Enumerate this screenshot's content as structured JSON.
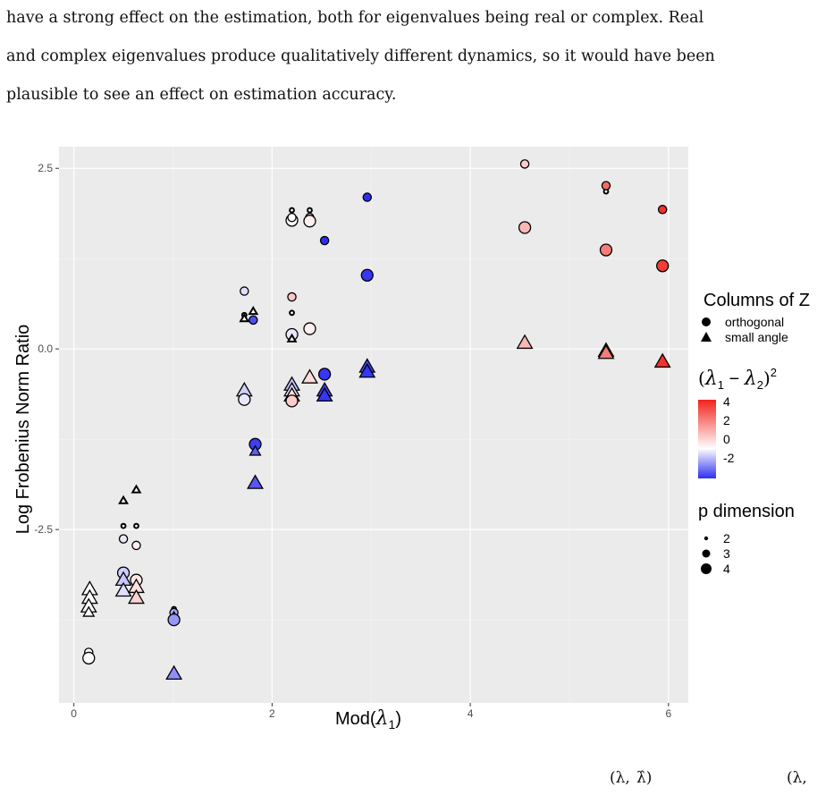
{
  "paper": {
    "lines": [
      "have a strong effect on the estimation, both for eigenvalues being real or complex. Real",
      "and complex eigenvalues produce qualitatively different dynamics, so it would have been",
      "plausible to see an effect on estimation accuracy."
    ],
    "footer_fragments": [
      "(λ,",
      "λ̂)",
      "(λ,"
    ]
  },
  "chart_data": {
    "type": "scatter",
    "xlabel": "Mod(λ1)",
    "ylabel": "Log Frobenius Norm Ratio",
    "xlim": [
      -0.15,
      6.2
    ],
    "ylim": [
      -4.9,
      2.8
    ],
    "x_ticks": [
      0,
      2,
      4,
      6
    ],
    "y_ticks": [
      2.5,
      0.0,
      -2.5
    ],
    "y_tick_labels": [
      "2.5",
      "0.0",
      "-2.5"
    ],
    "grid": true,
    "background": "#ebebeb",
    "legend": {
      "placement": "right",
      "shape": {
        "title": "Columns of Z",
        "entries": [
          {
            "label": "orthogonal",
            "shape": "circle"
          },
          {
            "label": "small angle",
            "shape": "triangle"
          }
        ]
      },
      "color": {
        "title": "(λ1 − λ2)²",
        "ticks": [
          "4",
          "2",
          "0",
          "-2"
        ],
        "low_color": "#2e2ef2",
        "mid_color": "#ffffff",
        "high_color": "#f1241c"
      },
      "size": {
        "title": "p dimension",
        "entries": [
          "2",
          "3",
          "4"
        ]
      }
    },
    "color_scale": {
      "min": -2.6,
      "mid": 0,
      "max": 4.3,
      "low": "#2e2ef2",
      "mid_color": "#ffffff",
      "high": "#f1241c"
    },
    "points": [
      {
        "x": 0.15,
        "y": -4.2,
        "shape": "circle",
        "p": 3,
        "c": 0
      },
      {
        "x": 0.15,
        "y": -4.28,
        "shape": "circle",
        "p": 4,
        "c": 0
      },
      {
        "x": 0.16,
        "y": -3.33,
        "shape": "triangle",
        "p": 4,
        "c": 0
      },
      {
        "x": 0.16,
        "y": -3.45,
        "shape": "triangle",
        "p": 4,
        "c": 0
      },
      {
        "x": 0.15,
        "y": -3.57,
        "shape": "triangle",
        "p": 4,
        "c": 0
      },
      {
        "x": 0.15,
        "y": -3.65,
        "shape": "triangle",
        "p": 3,
        "c": 0
      },
      {
        "x": 0.5,
        "y": -2.45,
        "shape": "circle",
        "p": 2,
        "c": 0
      },
      {
        "x": 0.5,
        "y": -2.63,
        "shape": "circle",
        "p": 3,
        "c": -0.3
      },
      {
        "x": 0.5,
        "y": -3.1,
        "shape": "circle",
        "p": 4,
        "c": -0.6
      },
      {
        "x": 0.5,
        "y": -3.2,
        "shape": "triangle",
        "p": 4,
        "c": -0.7
      },
      {
        "x": 0.5,
        "y": -3.35,
        "shape": "triangle",
        "p": 4,
        "c": -0.4
      },
      {
        "x": 0.5,
        "y": -2.1,
        "shape": "triangle",
        "p": 2,
        "c": 0
      },
      {
        "x": 0.63,
        "y": -1.95,
        "shape": "triangle",
        "p": 2,
        "c": 0
      },
      {
        "x": 0.63,
        "y": -2.45,
        "shape": "circle",
        "p": 2,
        "c": 0
      },
      {
        "x": 0.63,
        "y": -2.72,
        "shape": "circle",
        "p": 3,
        "c": 0.3
      },
      {
        "x": 0.63,
        "y": -3.2,
        "shape": "circle",
        "p": 4,
        "c": 0.45
      },
      {
        "x": 0.63,
        "y": -3.3,
        "shape": "triangle",
        "p": 4,
        "c": 0.6
      },
      {
        "x": 0.63,
        "y": -3.45,
        "shape": "triangle",
        "p": 4,
        "c": 0.9
      },
      {
        "x": 1.01,
        "y": -3.6,
        "shape": "circle",
        "p": 2,
        "c": 0
      },
      {
        "x": 1.01,
        "y": -3.65,
        "shape": "circle",
        "p": 3,
        "c": -1.1
      },
      {
        "x": 1.01,
        "y": -3.7,
        "shape": "triangle",
        "p": 2,
        "c": 0
      },
      {
        "x": 1.01,
        "y": -3.75,
        "shape": "circle",
        "p": 4,
        "c": -1.3
      },
      {
        "x": 1.01,
        "y": -4.5,
        "shape": "triangle",
        "p": 4,
        "c": -1.4
      },
      {
        "x": 1.72,
        "y": 0.8,
        "shape": "circle",
        "p": 3,
        "c": -0.4
      },
      {
        "x": 1.72,
        "y": 0.47,
        "shape": "circle",
        "p": 2,
        "c": 0
      },
      {
        "x": 1.72,
        "y": 0.42,
        "shape": "triangle",
        "p": 2,
        "c": 0
      },
      {
        "x": 1.72,
        "y": -0.58,
        "shape": "triangle",
        "p": 4,
        "c": -0.6
      },
      {
        "x": 1.72,
        "y": -0.7,
        "shape": "circle",
        "p": 4,
        "c": -0.3
      },
      {
        "x": 1.81,
        "y": 0.52,
        "shape": "triangle",
        "p": 2,
        "c": 0
      },
      {
        "x": 1.81,
        "y": 0.4,
        "shape": "circle",
        "p": 3,
        "c": -2.2
      },
      {
        "x": 1.83,
        "y": -1.32,
        "shape": "circle",
        "p": 4,
        "c": -2.4
      },
      {
        "x": 1.83,
        "y": -1.42,
        "shape": "triangle",
        "p": 3,
        "c": -2.0
      },
      {
        "x": 1.83,
        "y": -1.86,
        "shape": "triangle",
        "p": 4,
        "c": -2.1
      },
      {
        "x": 2.2,
        "y": 1.92,
        "shape": "circle",
        "p": 2,
        "c": 0
      },
      {
        "x": 2.2,
        "y": 1.78,
        "shape": "circle",
        "p": 4,
        "c": 0.1
      },
      {
        "x": 2.2,
        "y": 1.82,
        "shape": "circle",
        "p": 3,
        "c": 0
      },
      {
        "x": 2.2,
        "y": 0.72,
        "shape": "circle",
        "p": 3,
        "c": 1.1
      },
      {
        "x": 2.2,
        "y": 0.5,
        "shape": "circle",
        "p": 2,
        "c": 0
      },
      {
        "x": 2.2,
        "y": 0.2,
        "shape": "circle",
        "p": 4,
        "c": -0.3
      },
      {
        "x": 2.2,
        "y": 0.14,
        "shape": "triangle",
        "p": 2,
        "c": 0
      },
      {
        "x": 2.2,
        "y": -0.5,
        "shape": "triangle",
        "p": 4,
        "c": -0.8
      },
      {
        "x": 2.2,
        "y": -0.58,
        "shape": "triangle",
        "p": 4,
        "c": -0.3
      },
      {
        "x": 2.2,
        "y": -0.65,
        "shape": "triangle",
        "p": 4,
        "c": 0.6
      },
      {
        "x": 2.2,
        "y": -0.72,
        "shape": "circle",
        "p": 4,
        "c": 1.0
      },
      {
        "x": 2.38,
        "y": 1.92,
        "shape": "circle",
        "p": 2,
        "c": 0
      },
      {
        "x": 2.38,
        "y": 1.82,
        "shape": "circle",
        "p": 3,
        "c": 0
      },
      {
        "x": 2.38,
        "y": 1.77,
        "shape": "circle",
        "p": 4,
        "c": 0.3
      },
      {
        "x": 2.38,
        "y": 0.28,
        "shape": "circle",
        "p": 4,
        "c": 0.3
      },
      {
        "x": 2.38,
        "y": -0.4,
        "shape": "triangle",
        "p": 4,
        "c": 0.7
      },
      {
        "x": 2.53,
        "y": 1.5,
        "shape": "circle",
        "p": 3,
        "c": -2.6
      },
      {
        "x": 2.53,
        "y": -0.35,
        "shape": "circle",
        "p": 4,
        "c": -2.5
      },
      {
        "x": 2.53,
        "y": -0.58,
        "shape": "triangle",
        "p": 4,
        "c": -2.3
      },
      {
        "x": 2.53,
        "y": -0.65,
        "shape": "triangle",
        "p": 4,
        "c": -2.5
      },
      {
        "x": 2.96,
        "y": 2.1,
        "shape": "circle",
        "p": 3,
        "c": -2.6
      },
      {
        "x": 2.96,
        "y": 1.02,
        "shape": "circle",
        "p": 4,
        "c": -2.5
      },
      {
        "x": 2.96,
        "y": -0.25,
        "shape": "triangle",
        "p": 4,
        "c": -2.3
      },
      {
        "x": 2.96,
        "y": -0.32,
        "shape": "triangle",
        "p": 4,
        "c": -2.5
      },
      {
        "x": 4.55,
        "y": 2.55,
        "shape": "circle",
        "p": 2,
        "c": 0
      },
      {
        "x": 4.55,
        "y": 2.56,
        "shape": "circle",
        "p": 3,
        "c": 1.0
      },
      {
        "x": 4.55,
        "y": 1.68,
        "shape": "circle",
        "p": 4,
        "c": 1.4
      },
      {
        "x": 4.55,
        "y": 0.08,
        "shape": "triangle",
        "p": 4,
        "c": 1.4
      },
      {
        "x": 5.37,
        "y": 2.18,
        "shape": "circle",
        "p": 2,
        "c": 0
      },
      {
        "x": 5.37,
        "y": 2.26,
        "shape": "circle",
        "p": 3,
        "c": 2.9
      },
      {
        "x": 5.37,
        "y": 1.37,
        "shape": "circle",
        "p": 4,
        "c": 2.6
      },
      {
        "x": 5.37,
        "y": -0.03,
        "shape": "triangle",
        "p": 4,
        "c": 2.2
      },
      {
        "x": 5.37,
        "y": -0.06,
        "shape": "triangle",
        "p": 4,
        "c": 2.6
      },
      {
        "x": 5.94,
        "y": 1.93,
        "shape": "circle",
        "p": 3,
        "c": 4.0
      },
      {
        "x": 5.94,
        "y": 1.15,
        "shape": "circle",
        "p": 4,
        "c": 3.8
      },
      {
        "x": 5.94,
        "y": -0.18,
        "shape": "triangle",
        "p": 4,
        "c": 4.0
      }
    ]
  }
}
